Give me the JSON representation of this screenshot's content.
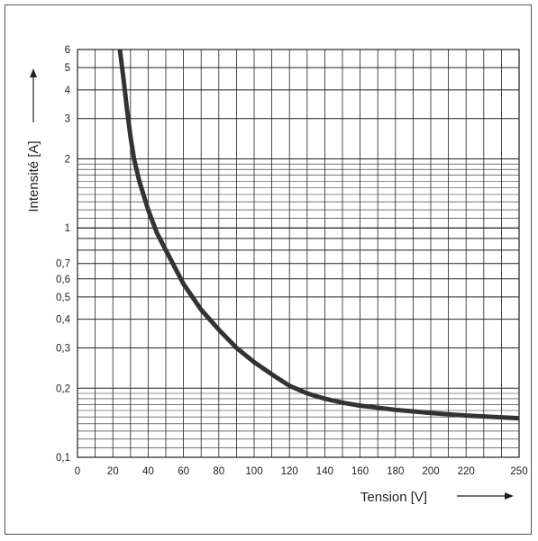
{
  "chart_data": {
    "type": "line",
    "title": "",
    "xlabel": "Tension [V]",
    "ylabel": "Intensité [A]",
    "x_scale": "linear",
    "y_scale": "log",
    "xlim": [
      0,
      250
    ],
    "ylim": [
      0.1,
      6
    ],
    "x_tick_labels": [
      "0",
      "20",
      "40",
      "60",
      "80",
      "100",
      "120",
      "140",
      "160",
      "180",
      "200",
      "220",
      "250"
    ],
    "y_tick_labels": [
      "0,1",
      "0,2",
      "0,3",
      "0,4",
      "0,5",
      "0,6",
      "0,7",
      "1",
      "2",
      "3",
      "4",
      "5",
      "6"
    ],
    "grid": true,
    "series": [
      {
        "color": "#333333",
        "x": [
          24,
          26,
          28,
          30,
          32,
          35,
          40,
          45,
          50,
          60,
          70,
          80,
          90,
          100,
          110,
          120,
          130,
          140,
          150,
          160,
          180,
          200,
          220,
          250
        ],
        "y": [
          6,
          4.5,
          3.3,
          2.5,
          2.0,
          1.6,
          1.2,
          0.95,
          0.8,
          0.57,
          0.44,
          0.36,
          0.3,
          0.26,
          0.23,
          0.205,
          0.19,
          0.18,
          0.173,
          0.168,
          0.161,
          0.156,
          0.152,
          0.148
        ]
      }
    ]
  }
}
